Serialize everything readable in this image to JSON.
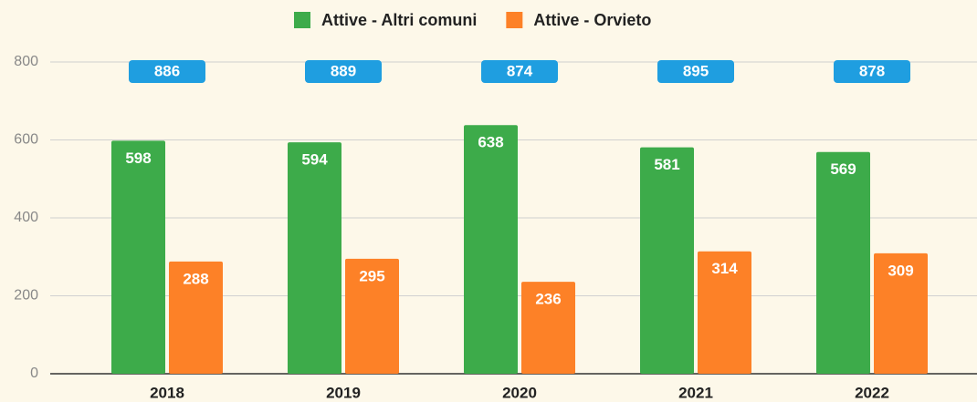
{
  "chart_data": {
    "type": "bar",
    "categories": [
      "2018",
      "2019",
      "2020",
      "2021",
      "2022"
    ],
    "series": [
      {
        "name": "Attive - Altri comuni",
        "color": "#3dab4a",
        "values": [
          598,
          594,
          638,
          581,
          569
        ]
      },
      {
        "name": "Attive - Orvieto",
        "color": "#fd8127",
        "values": [
          288,
          295,
          236,
          314,
          309
        ]
      }
    ],
    "totals": [
      886,
      889,
      874,
      895,
      878
    ],
    "totals_color": "#1f9ee0",
    "ylim": [
      0,
      800
    ],
    "yticks": [
      0,
      200,
      400,
      600,
      800
    ],
    "grid": true,
    "legend": "top"
  }
}
